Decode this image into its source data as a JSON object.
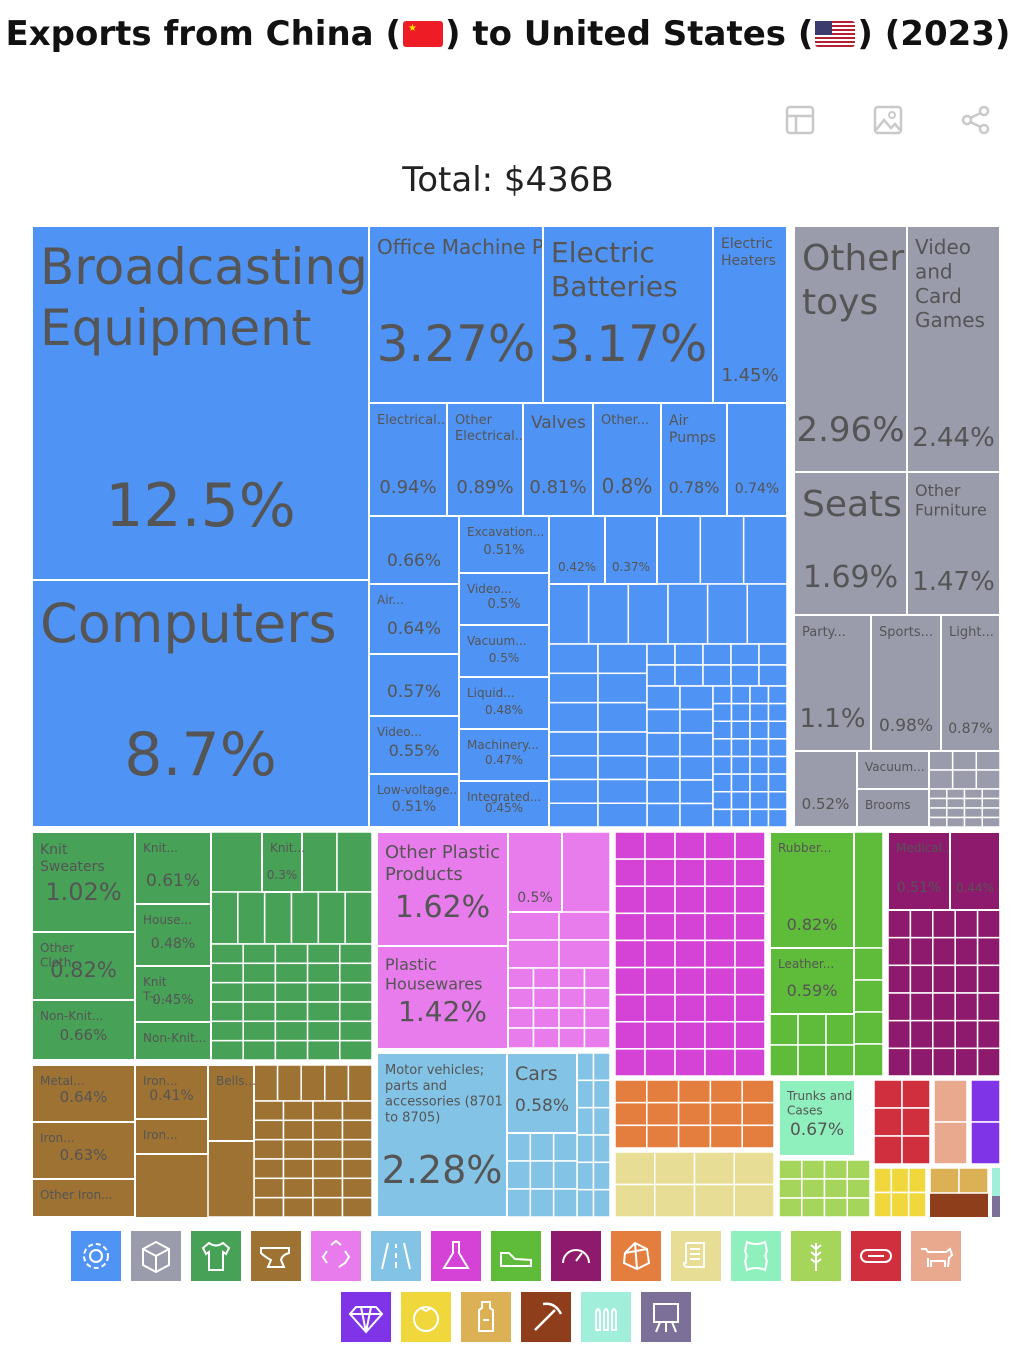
{
  "title_prefix": "Exports from China (",
  "title_mid": ") to United States (",
  "title_suffix": ") (2023)",
  "total_text": "Total: $436B",
  "toolbar": [
    {
      "name": "table-icon",
      "color": "#c9c9c9"
    },
    {
      "name": "image-icon",
      "color": "#c9c9c9"
    },
    {
      "name": "share-icon",
      "color": "#c9c9c9"
    }
  ],
  "colors": {
    "machinery": "#4f93f4",
    "transportation": "#9a9bab",
    "textiles": "#47a157",
    "metals": "#9d7233",
    "plastics": "#e87ced",
    "vehicles": "#82c3e6",
    "chemicals": "#d443d6",
    "footwear": "#5fbb3a",
    "instruments": "#8e1a6d",
    "stone": "#e47e3f",
    "paper": "#e8dd94",
    "hides": "#8ff0be",
    "vegetable": "#a5d65b",
    "wood": "#d0303e",
    "animal": "#e9a98f",
    "precious": "#8034e8",
    "foodstuffs": "#f0d83c",
    "mineral": "#dcb054",
    "weapons": "#8f3e1c",
    "arms": "#a1efdb",
    "arts": "#7c7098"
  },
  "chart_data": {
    "type": "treemap",
    "title": "Exports from China to United States (2023)",
    "total": "$436B",
    "items": [
      {
        "label": "Broadcasting Equipment",
        "value": 12.5,
        "value_text": "12.5%",
        "sector": "machinery"
      },
      {
        "label": "Computers",
        "value": 8.7,
        "value_text": "8.7%",
        "sector": "machinery"
      },
      {
        "label": "Office Machine Parts",
        "value": 3.27,
        "value_text": "3.27%",
        "sector": "machinery"
      },
      {
        "label": "Electric Batteries",
        "value": 3.17,
        "value_text": "3.17%",
        "sector": "machinery"
      },
      {
        "label": "Electric Heaters",
        "value": 1.45,
        "value_text": "1.45%",
        "sector": "machinery"
      },
      {
        "label": "Electrical...",
        "value": 0.94,
        "value_text": "0.94%",
        "sector": "machinery"
      },
      {
        "label": "Other Electrical...",
        "value": 0.89,
        "value_text": "0.89%",
        "sector": "machinery"
      },
      {
        "label": "Valves",
        "value": 0.81,
        "value_text": "0.81%",
        "sector": "machinery"
      },
      {
        "label": "Other...",
        "value": 0.8,
        "value_text": "0.8%",
        "sector": "machinery"
      },
      {
        "label": "Air Pumps",
        "value": 0.78,
        "value_text": "0.78%",
        "sector": "machinery"
      },
      {
        "label": "",
        "value": 0.74,
        "value_text": "0.74%",
        "sector": "machinery"
      },
      {
        "label": "",
        "value": 0.66,
        "value_text": "0.66%",
        "sector": "machinery"
      },
      {
        "label": "Excavation...",
        "value": 0.51,
        "value_text": "0.51%",
        "sector": "machinery"
      },
      {
        "label": "",
        "value": 0.42,
        "value_text": "0.42%",
        "sector": "machinery"
      },
      {
        "label": "",
        "value": 0.37,
        "value_text": "0.37%",
        "sector": "machinery"
      },
      {
        "label": "Air...",
        "value": 0.64,
        "value_text": "0.64%",
        "sector": "machinery"
      },
      {
        "label": "Video...",
        "value": 0.5,
        "value_text": "0.5%",
        "sector": "machinery"
      },
      {
        "label": "Vacuum...",
        "value": 0.5,
        "value_text": "0.5%",
        "sector": "machinery"
      },
      {
        "label": "",
        "value": 0.57,
        "value_text": "0.57%",
        "sector": "machinery"
      },
      {
        "label": "Liquid...",
        "value": 0.48,
        "value_text": "0.48%",
        "sector": "machinery"
      },
      {
        "label": "Video...",
        "value": 0.55,
        "value_text": "0.55%",
        "sector": "machinery"
      },
      {
        "label": "Machinery...",
        "value": 0.47,
        "value_text": "0.47%",
        "sector": "machinery"
      },
      {
        "label": "Low-voltage...",
        "value": 0.51,
        "value_text": "0.51%",
        "sector": "machinery"
      },
      {
        "label": "Integrated...",
        "value": 0.45,
        "value_text": "0.45%",
        "sector": "machinery"
      },
      {
        "label": "Other toys",
        "value": 2.96,
        "value_text": "2.96%",
        "sector": "transportation"
      },
      {
        "label": "Video and Card Games",
        "value": 2.44,
        "value_text": "2.44%",
        "sector": "transportation"
      },
      {
        "label": "Seats",
        "value": 1.69,
        "value_text": "1.69%",
        "sector": "transportation"
      },
      {
        "label": "Other Furniture",
        "value": 1.47,
        "value_text": "1.47%",
        "sector": "transportation"
      },
      {
        "label": "Party...",
        "value": 1.1,
        "value_text": "1.1%",
        "sector": "transportation"
      },
      {
        "label": "Sports...",
        "value": 0.98,
        "value_text": "0.98%",
        "sector": "transportation"
      },
      {
        "label": "Light...",
        "value": 0.87,
        "value_text": "0.87%",
        "sector": "transportation"
      },
      {
        "label": "",
        "value": 0.52,
        "value_text": "0.52%",
        "sector": "transportation"
      },
      {
        "label": "Vacuum...",
        "value": null,
        "value_text": "",
        "sector": "transportation"
      },
      {
        "label": "Brooms",
        "value": null,
        "value_text": "",
        "sector": "transportation"
      },
      {
        "label": "Knit Sweaters",
        "value": 1.02,
        "value_text": "1.02%",
        "sector": "textiles"
      },
      {
        "label": "Knit...",
        "value": 0.61,
        "value_text": "0.61%",
        "sector": "textiles"
      },
      {
        "label": "Knit...",
        "value": 0.3,
        "value_text": "0.3%",
        "sector": "textiles"
      },
      {
        "label": "Other Cloth...",
        "value": 0.82,
        "value_text": "0.82%",
        "sector": "textiles"
      },
      {
        "label": "House...",
        "value": 0.48,
        "value_text": "0.48%",
        "sector": "textiles"
      },
      {
        "label": "Knit T-...",
        "value": 0.45,
        "value_text": "0.45%",
        "sector": "textiles"
      },
      {
        "label": "Non-Knit...",
        "value": 0.66,
        "value_text": "0.66%",
        "sector": "textiles"
      },
      {
        "label": "Non-Knit...",
        "value": null,
        "value_text": "",
        "sector": "textiles"
      },
      {
        "label": "Metal...",
        "value": 0.64,
        "value_text": "0.64%",
        "sector": "metals"
      },
      {
        "label": "Iron...",
        "value": 0.41,
        "value_text": "0.41%",
        "sector": "metals"
      },
      {
        "label": "Bells...",
        "value": null,
        "value_text": "",
        "sector": "metals"
      },
      {
        "label": "Iron...",
        "value": null,
        "value_text": "",
        "sector": "metals"
      },
      {
        "label": "Iron...",
        "value": 0.63,
        "value_text": "0.63%",
        "sector": "metals"
      },
      {
        "label": "Other Iron...",
        "value": null,
        "value_text": "",
        "sector": "metals"
      },
      {
        "label": "Other Plastic Products",
        "value": 1.62,
        "value_text": "1.62%",
        "sector": "plastics"
      },
      {
        "label": "",
        "value": 0.5,
        "value_text": "0.5%",
        "sector": "plastics"
      },
      {
        "label": "Plastic Housewares",
        "value": 1.42,
        "value_text": "1.42%",
        "sector": "plastics"
      },
      {
        "label": "Motor vehicles; parts and accessories (8701 to 8705)",
        "value": 2.28,
        "value_text": "2.28%",
        "sector": "vehicles"
      },
      {
        "label": "Cars",
        "value": 0.58,
        "value_text": "0.58%",
        "sector": "vehicles"
      },
      {
        "label": "Rubber...",
        "value": 0.82,
        "value_text": "0.82%",
        "sector": "footwear"
      },
      {
        "label": "Leather...",
        "value": 0.59,
        "value_text": "0.59%",
        "sector": "footwear"
      },
      {
        "label": "Medical...",
        "value": 0.51,
        "value_text": "0.51%",
        "sector": "instruments"
      },
      {
        "label": "",
        "value": 0.44,
        "value_text": "0.44%",
        "sector": "instruments"
      },
      {
        "label": "Trunks and Cases",
        "value": 0.67,
        "value_text": "0.67%",
        "sector": "hides"
      }
    ]
  },
  "legend": [
    {
      "name": "gear-icon",
      "sector": "machinery"
    },
    {
      "name": "box-icon",
      "sector": "transportation"
    },
    {
      "name": "shirt-icon",
      "sector": "textiles"
    },
    {
      "name": "anvil-icon",
      "sector": "metals"
    },
    {
      "name": "recycle-icon",
      "sector": "plastics"
    },
    {
      "name": "road-icon",
      "sector": "vehicles"
    },
    {
      "name": "flask-icon",
      "sector": "chemicals"
    },
    {
      "name": "shoe-icon",
      "sector": "footwear"
    },
    {
      "name": "gauge-icon",
      "sector": "instruments"
    },
    {
      "name": "gem-rock-icon",
      "sector": "stone"
    },
    {
      "name": "scroll-icon",
      "sector": "paper"
    },
    {
      "name": "hide-icon",
      "sector": "hides"
    },
    {
      "name": "wheat-icon",
      "sector": "vegetable"
    },
    {
      "name": "log-icon",
      "sector": "wood"
    },
    {
      "name": "cow-icon",
      "sector": "animal"
    },
    {
      "name": "diamond-icon",
      "sector": "precious"
    },
    {
      "name": "tomato-icon",
      "sector": "foodstuffs"
    },
    {
      "name": "bottle-icon",
      "sector": "mineral"
    },
    {
      "name": "pickaxe-icon",
      "sector": "weapons"
    },
    {
      "name": "bullets-icon",
      "sector": "arms"
    },
    {
      "name": "easel-icon",
      "sector": "arts"
    }
  ]
}
